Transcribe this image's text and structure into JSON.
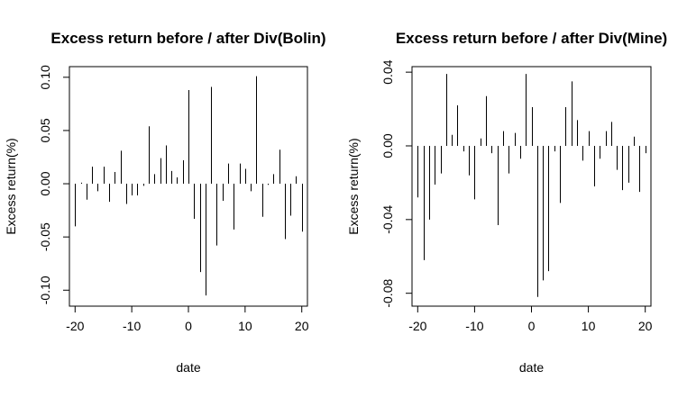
{
  "chart_data": [
    {
      "type": "bar",
      "title": "Excess return before / after Div(Bolin)",
      "xlabel": "date",
      "ylabel": "Excess return(%)",
      "xlim": [
        -21,
        21
      ],
      "ylim": [
        -0.115,
        0.11
      ],
      "x_ticks": [
        -20,
        -10,
        0,
        10,
        20
      ],
      "y_ticks": [
        -0.1,
        -0.05,
        0.0,
        0.05,
        0.1
      ],
      "x_tick_labels": [
        "-20",
        "-10",
        "0",
        "10",
        "20"
      ],
      "y_tick_labels": [
        "-0.10",
        "-0.05",
        "0.00",
        "0.05",
        "0.10"
      ],
      "grid": false,
      "x": [
        -20,
        -19,
        -18,
        -17,
        -16,
        -15,
        -14,
        -13,
        -12,
        -11,
        -10,
        -9,
        -8,
        -7,
        -6,
        -5,
        -4,
        -3,
        -2,
        -1,
        0,
        1,
        2,
        3,
        4,
        5,
        6,
        7,
        8,
        9,
        10,
        11,
        12,
        13,
        14,
        15,
        16,
        17,
        18,
        19,
        20
      ],
      "values": [
        -0.04,
        0.001,
        -0.015,
        0.016,
        -0.007,
        0.016,
        -0.017,
        0.011,
        0.031,
        -0.019,
        -0.011,
        -0.011,
        -0.002,
        0.054,
        0.009,
        0.024,
        0.036,
        0.012,
        0.006,
        0.022,
        0.088,
        -0.033,
        -0.083,
        -0.105,
        0.091,
        -0.058,
        -0.016,
        0.019,
        -0.043,
        0.019,
        0.014,
        -0.007,
        0.101,
        -0.031,
        -0.001,
        0.009,
        0.032,
        -0.052,
        -0.03,
        0.007,
        -0.045
      ]
    },
    {
      "type": "bar",
      "title": "Excess return before / after Div(Mine)",
      "xlabel": "date",
      "ylabel": "Excess return(%)",
      "xlim": [
        -21,
        21
      ],
      "ylim": [
        -0.087,
        0.043
      ],
      "x_ticks": [
        -20,
        -10,
        0,
        10,
        20
      ],
      "y_ticks": [
        -0.08,
        -0.04,
        0.0,
        0.04
      ],
      "x_tick_labels": [
        "-20",
        "-10",
        "0",
        "10",
        "20"
      ],
      "y_tick_labels": [
        "-0.08",
        "-0.04",
        "0.00",
        "0.04"
      ],
      "grid": false,
      "x": [
        -20,
        -19,
        -18,
        -17,
        -16,
        -15,
        -14,
        -13,
        -12,
        -11,
        -10,
        -9,
        -8,
        -7,
        -6,
        -5,
        -4,
        -3,
        -2,
        -1,
        0,
        1,
        2,
        3,
        4,
        5,
        6,
        7,
        8,
        9,
        10,
        11,
        12,
        13,
        14,
        15,
        16,
        17,
        18,
        19,
        20
      ],
      "values": [
        -0.028,
        -0.062,
        -0.04,
        -0.021,
        -0.015,
        0.039,
        0.006,
        0.022,
        -0.003,
        -0.016,
        -0.029,
        0.004,
        0.027,
        -0.004,
        -0.043,
        0.008,
        -0.015,
        0.007,
        -0.007,
        0.039,
        0.021,
        -0.082,
        -0.073,
        -0.068,
        -0.003,
        -0.031,
        0.021,
        0.035,
        0.014,
        -0.008,
        0.008,
        -0.022,
        -0.007,
        0.008,
        0.013,
        -0.013,
        -0.024,
        -0.02,
        0.005,
        -0.025,
        -0.004
      ]
    }
  ]
}
